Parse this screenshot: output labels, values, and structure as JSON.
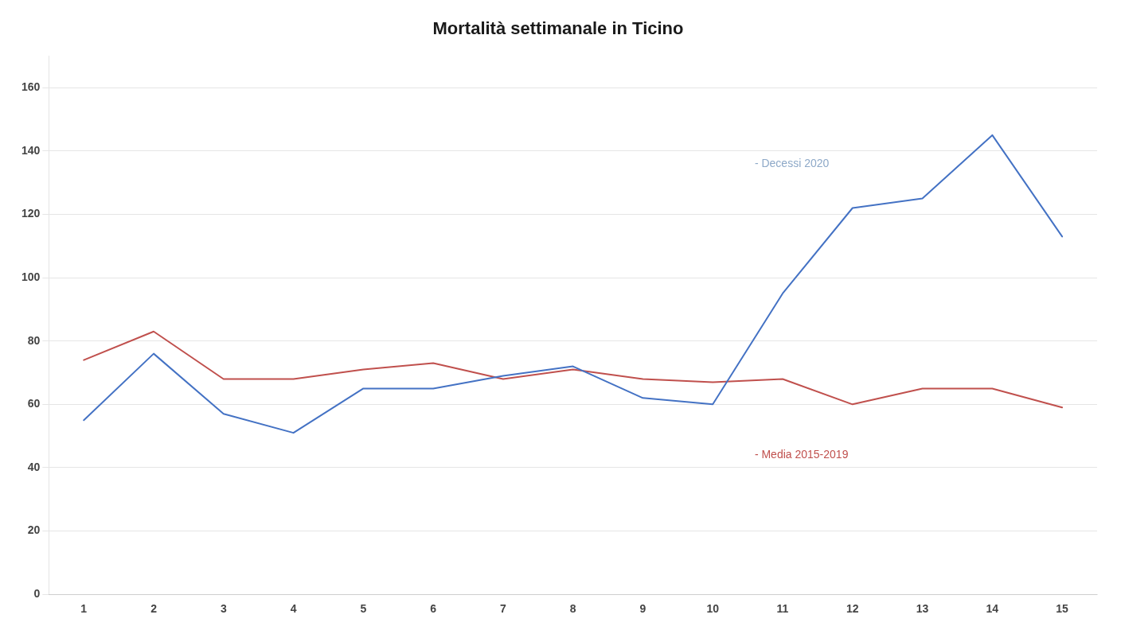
{
  "chart_data": {
    "type": "line",
    "title": "Mortalità settimanale in Ticino",
    "x": [
      1,
      2,
      3,
      4,
      5,
      6,
      7,
      8,
      9,
      10,
      11,
      12,
      13,
      14,
      15
    ],
    "series": [
      {
        "color": "#4472C4",
        "values": [
          55,
          76,
          57,
          51,
          65,
          65,
          69,
          72,
          62,
          60,
          95,
          122,
          125,
          145,
          113
        ]
      },
      {
        "color": "#C0504D",
        "values": [
          74,
          83,
          68,
          68,
          71,
          73,
          68,
          71,
          68,
          67,
          68,
          60,
          65,
          65,
          59
        ]
      }
    ],
    "xlim": [
      0.5,
      15.5
    ],
    "xticks": [
      1,
      2,
      3,
      4,
      5,
      6,
      7,
      8,
      9,
      10,
      11,
      12,
      13,
      14,
      15
    ],
    "ylim": [
      0,
      170
    ],
    "yticks": [
      0,
      20,
      40,
      60,
      80,
      100,
      120,
      140,
      160
    ],
    "grid": true,
    "annotations": [
      {
        "text": "- Decessi 2020",
        "x": 10.6,
        "y": 136,
        "color": "#8EA9C8"
      },
      {
        "text": "- Media 2015-2019",
        "x": 10.6,
        "y": 44,
        "color": "#C0504D"
      }
    ]
  }
}
